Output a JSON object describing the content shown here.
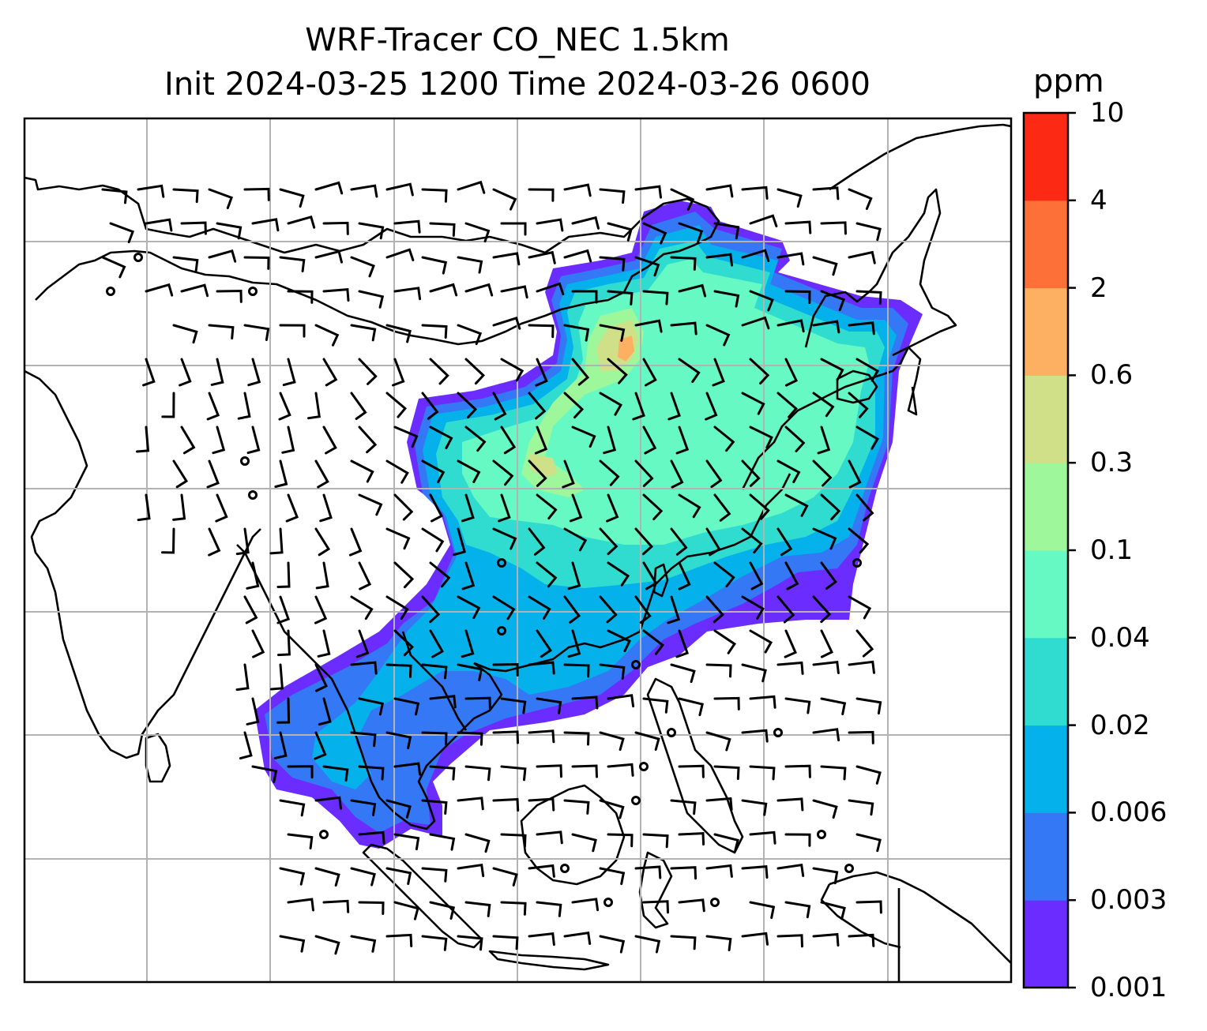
{
  "title": {
    "line1": "WRF-Tracer CO_NEC 1.5km",
    "line2": "Init 2024-03-25 1200 Time 2024-03-26 0600"
  },
  "colorbar": {
    "unit": "ppm",
    "levels": [
      "0.001",
      "0.003",
      "0.006",
      "0.02",
      "0.04",
      "0.1",
      "0.3",
      "0.6",
      "2",
      "4",
      "10"
    ],
    "colors": [
      "#6a2cff",
      "#3478f6",
      "#04b1ea",
      "#2fdccf",
      "#66f9c4",
      "#9ef79a",
      "#cfe088",
      "#fdb061",
      "#fd7038",
      "#fc2a14"
    ]
  },
  "map": {
    "coastline_color": "#000000",
    "grid_color": "#b3b3b3",
    "wind_barb_color": "#000000"
  }
}
